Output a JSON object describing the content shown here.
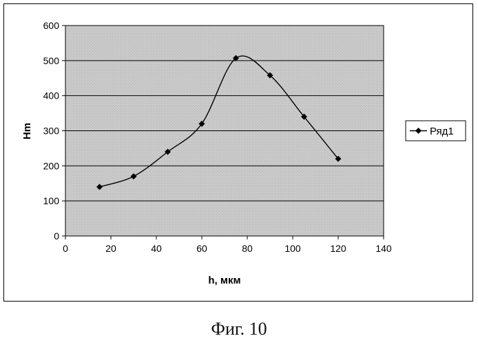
{
  "chart_data": {
    "type": "line",
    "title": "",
    "xlabel": "h, мкм",
    "ylabel": "Hm",
    "xlim": [
      0,
      140
    ],
    "ylim": [
      0,
      600
    ],
    "xticks": [
      "0",
      "20",
      "40",
      "60",
      "80",
      "100",
      "120",
      "140"
    ],
    "yticks": [
      "0",
      "100",
      "200",
      "300",
      "400",
      "500",
      "600"
    ],
    "grid": true,
    "smooth": true,
    "legend_position": "right",
    "series": [
      {
        "name": "Ряд1",
        "x": [
          15,
          30,
          45,
          60,
          75,
          90,
          105,
          120
        ],
        "y": [
          140,
          170,
          240,
          320,
          507,
          458,
          340,
          220
        ]
      }
    ]
  },
  "caption": "Фиг. 10",
  "colors": {
    "plot_background": "#c8c8c8",
    "line": "#000000",
    "grid": "#000000"
  }
}
